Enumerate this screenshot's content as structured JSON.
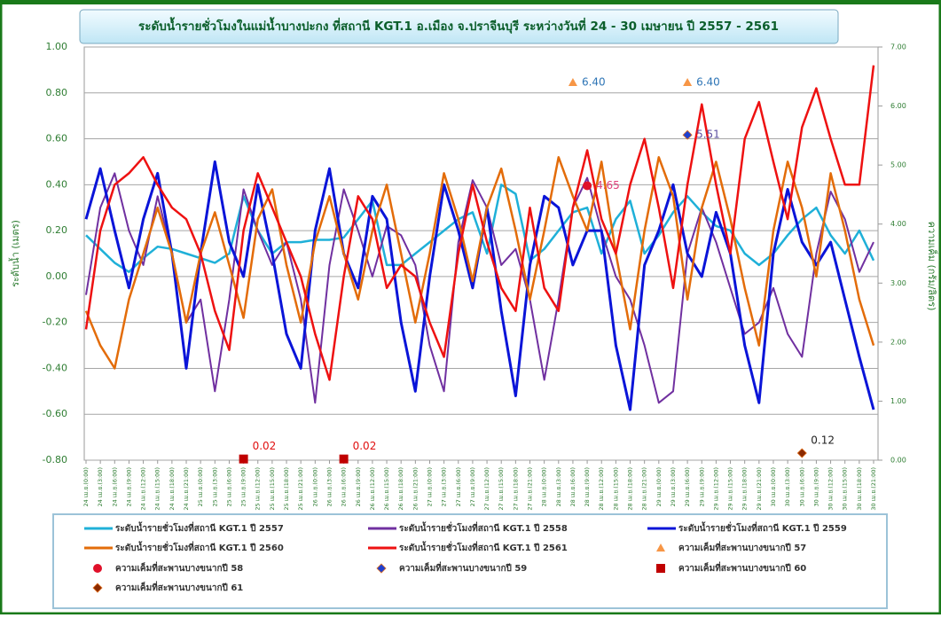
{
  "chart_data": {
    "type": "line",
    "title": "ระดับน้ำรายชั่วโมงในแม่น้ำบางปะกง ที่สถานี KGT.1 อ.เมือง จ.ปราจีนบุรี ระหว่างวันที่ 24 - 30 เมษายน ปี 2557 - 2561",
    "y_label": "ระดับน้ำ (เมตร)",
    "y2_label": "ความเค็ม (กรัม/ลิตร)",
    "grid": true,
    "ylim": [
      -0.8,
      1.0
    ],
    "yticks": [
      {
        "value": -0.8,
        "label": "-0.80"
      },
      {
        "value": -0.6,
        "label": "-0.60"
      },
      {
        "value": -0.4,
        "label": "-0.40"
      },
      {
        "value": -0.2,
        "label": "-0.20"
      },
      {
        "value": 0,
        "label": "0.00"
      },
      {
        "value": 0.2,
        "label": "0.20"
      },
      {
        "value": 0.4,
        "label": "0.40"
      },
      {
        "value": 0.6,
        "label": "0.60"
      },
      {
        "value": 0.8,
        "label": "0.80"
      },
      {
        "value": 1.0,
        "label": "1.00"
      }
    ],
    "y2lim": [
      0,
      7
    ],
    "y2ticks": [
      {
        "value": 0,
        "label": "0.00"
      },
      {
        "value": 1,
        "label": "1.00"
      },
      {
        "value": 2,
        "label": "2.00"
      },
      {
        "value": 3,
        "label": "3.00"
      },
      {
        "value": 4,
        "label": "4.00"
      },
      {
        "value": 5,
        "label": "5.00"
      },
      {
        "value": 6,
        "label": "6.00"
      },
      {
        "value": 7,
        "label": "7.00"
      }
    ],
    "categories": [
      "24 เม.ย.(0:00)",
      "24 เม.ย.(3:00)",
      "24 เม.ย.(6:00)",
      "24 เม.ย.(9:00)",
      "24 เม.ย.(12:00)",
      "24 เม.ย.(15:00)",
      "24 เม.ย.(18:00)",
      "24 เม.ย.(21:00)",
      "25 เม.ย.(0:00)",
      "25 เม.ย.(3:00)",
      "25 เม.ย.(6:00)",
      "25 เม.ย.(9:00)",
      "25 เม.ย.(12:00)",
      "25 เม.ย.(15:00)",
      "25 เม.ย.(18:00)",
      "25 เม.ย.(21:00)",
      "26 เม.ย.(0:00)",
      "26 เม.ย.(3:00)",
      "26 เม.ย.(6:00)",
      "26 เม.ย.(9:00)",
      "26 เม.ย.(12:00)",
      "26 เม.ย.(15:00)",
      "26 เม.ย.(18:00)",
      "26 เม.ย.(21:00)",
      "27 เม.ย.(0:00)",
      "27 เม.ย.(3:00)",
      "27 เม.ย.(6:00)",
      "27 เม.ย.(9:00)",
      "27 เม.ย.(12:00)",
      "27 เม.ย.(15:00)",
      "27 เม.ย.(18:00)",
      "27 เม.ย.(21:00)",
      "28 เม.ย.(0:00)",
      "28 เม.ย.(3:00)",
      "28 เม.ย.(6:00)",
      "28 เม.ย.(9:00)",
      "28 เม.ย.(12:00)",
      "28 เม.ย.(15:00)",
      "28 เม.ย.(18:00)",
      "28 เม.ย.(21:00)",
      "29 เม.ย.(0:00)",
      "29 เม.ย.(3:00)",
      "29 เม.ย.(6:00)",
      "29 เม.ย.(9:00)",
      "29 เม.ย.(12:00)",
      "29 เม.ย.(15:00)",
      "29 เม.ย.(18:00)",
      "29 เม.ย.(21:00)",
      "30 เม.ย.(0:00)",
      "30 เม.ย.(3:00)",
      "30 เม.ย.(6:00)",
      "30 เม.ย.(9:00)",
      "30 เม.ย.(12:00)",
      "30 เม.ย.(15:00)",
      "30 เม.ย.(18:00)",
      "30 เม.ย.(21:00)"
    ],
    "series": [
      {
        "name": "ระดับน้ำรายชั่วโมงที่สถานี KGT.1  ปี 2557",
        "color": "#1fb0d8",
        "width": 2.5,
        "values": [
          0.18,
          0.12,
          0.06,
          0.02,
          0.08,
          0.13,
          0.12,
          0.1,
          0.08,
          0.06,
          0.1,
          0.35,
          0.2,
          0.1,
          0.15,
          0.15,
          0.16,
          0.16,
          0.17,
          0.25,
          0.33,
          0.05,
          0.05,
          0.1,
          0.15,
          0.2,
          0.25,
          0.28,
          0.1,
          0.4,
          0.36,
          0.07,
          0.12,
          0.2,
          0.28,
          0.3,
          0.1,
          0.25,
          0.33,
          0.1,
          0.18,
          0.28,
          0.35,
          0.28,
          0.22,
          0.2,
          0.1,
          0.05,
          0.1,
          0.18,
          0.25,
          0.3,
          0.18,
          0.1,
          0.2,
          0.07
        ]
      },
      {
        "name": "ระดับน้ำรายชั่วโมงที่สถานี KGT.1  ปี 2558",
        "color": "#7030a0",
        "width": 2,
        "values": [
          -0.08,
          0.3,
          0.45,
          0.2,
          0.05,
          0.35,
          0.1,
          -0.2,
          -0.1,
          -0.5,
          -0.1,
          0.38,
          0.2,
          0.05,
          0.15,
          -0.1,
          -0.55,
          0.05,
          0.38,
          0.2,
          0.0,
          0.22,
          0.18,
          0.05,
          -0.3,
          -0.5,
          0.15,
          0.42,
          0.3,
          0.05,
          0.12,
          -0.1,
          -0.45,
          -0.1,
          0.3,
          0.43,
          0.2,
          0.0,
          -0.1,
          -0.3,
          -0.55,
          -0.5,
          0.1,
          0.3,
          0.15,
          -0.05,
          -0.25,
          -0.2,
          -0.05,
          -0.25,
          -0.35,
          0.1,
          0.37,
          0.25,
          0.02,
          0.15
        ]
      },
      {
        "name": "ระดับน้ำรายชั่วโมงที่สถานี KGT.1  ปี 2559",
        "color": "#0a14d8",
        "width": 3,
        "values": [
          0.25,
          0.47,
          0.2,
          -0.05,
          0.25,
          0.45,
          0.1,
          -0.4,
          0.1,
          0.5,
          0.15,
          0.0,
          0.4,
          0.1,
          -0.25,
          -0.4,
          0.2,
          0.47,
          0.1,
          -0.05,
          0.35,
          0.25,
          -0.2,
          -0.5,
          0.0,
          0.4,
          0.2,
          -0.05,
          0.3,
          -0.15,
          -0.52,
          0.05,
          0.35,
          0.3,
          0.05,
          0.2,
          0.2,
          -0.3,
          -0.58,
          0.05,
          0.2,
          0.4,
          0.1,
          0.0,
          0.28,
          0.1,
          -0.3,
          -0.55,
          0.1,
          0.38,
          0.15,
          0.05,
          0.15,
          -0.1,
          -0.35,
          -0.58
        ]
      },
      {
        "name": "ระดับน้ำรายชั่วโมงที่สถานี KGT.1  ปี 2560",
        "color": "#e36c09",
        "width": 2.5,
        "values": [
          -0.15,
          -0.3,
          -0.4,
          -0.1,
          0.1,
          0.3,
          0.1,
          -0.2,
          0.1,
          0.28,
          0.05,
          -0.18,
          0.25,
          0.38,
          0.05,
          -0.2,
          0.15,
          0.35,
          0.1,
          -0.1,
          0.2,
          0.4,
          0.1,
          -0.2,
          0.1,
          0.45,
          0.25,
          -0.02,
          0.3,
          0.47,
          0.2,
          -0.1,
          0.2,
          0.52,
          0.35,
          0.2,
          0.5,
          0.1,
          -0.23,
          0.2,
          0.52,
          0.35,
          -0.1,
          0.3,
          0.5,
          0.25,
          -0.05,
          -0.3,
          0.2,
          0.5,
          0.3,
          0.0,
          0.45,
          0.2,
          -0.1,
          -0.3
        ]
      },
      {
        "name": "ระดับน้ำรายชั่วโมงที่สถานี KGT.1  ปี 2561",
        "color": "#ee1111",
        "width": 2.5,
        "values": [
          -0.23,
          0.2,
          0.4,
          0.45,
          0.52,
          0.4,
          0.3,
          0.25,
          0.1,
          -0.15,
          -0.32,
          0.2,
          0.45,
          0.3,
          0.15,
          0.0,
          -0.25,
          -0.45,
          0.0,
          0.35,
          0.25,
          -0.05,
          0.05,
          0.0,
          -0.2,
          -0.35,
          0.1,
          0.4,
          0.15,
          -0.05,
          -0.15,
          0.3,
          -0.05,
          -0.15,
          0.3,
          0.55,
          0.25,
          0.1,
          0.4,
          0.6,
          0.3,
          -0.05,
          0.4,
          0.75,
          0.4,
          0.1,
          0.6,
          0.76,
          0.5,
          0.25,
          0.65,
          0.82,
          0.6,
          0.4,
          0.4,
          0.92
        ]
      },
      {
        "name": "ความเค็มที่สะพานบางขนากปี 57",
        "color": "#f79646",
        "marker": "triangle",
        "axis": "y2",
        "label_color": "#2e75b6",
        "values": [
          null,
          null,
          null,
          null,
          null,
          null,
          null,
          null,
          null,
          null,
          null,
          null,
          null,
          null,
          null,
          null,
          null,
          null,
          null,
          null,
          null,
          null,
          null,
          null,
          null,
          null,
          null,
          null,
          null,
          null,
          null,
          null,
          null,
          null,
          6.4,
          null,
          null,
          null,
          null,
          null,
          null,
          null,
          6.4,
          null,
          null,
          null,
          null,
          null,
          null,
          null,
          null,
          null,
          null,
          null,
          null,
          null
        ],
        "value_labels": [
          null,
          null,
          null,
          null,
          null,
          null,
          null,
          null,
          null,
          null,
          null,
          null,
          null,
          null,
          null,
          null,
          null,
          null,
          null,
          null,
          null,
          null,
          null,
          null,
          null,
          null,
          null,
          null,
          null,
          null,
          null,
          null,
          null,
          null,
          "6.40",
          null,
          null,
          null,
          null,
          null,
          null,
          null,
          "6.40",
          null,
          null,
          null,
          null,
          null,
          null,
          null,
          null,
          null,
          null,
          null,
          null,
          null
        ]
      },
      {
        "name": "ความเค็มที่สะพานบางขนากปี 58",
        "color": "#e0102a",
        "marker": "circle",
        "axis": "y2",
        "label_color": "#e0407b",
        "values": [
          null,
          null,
          null,
          null,
          null,
          null,
          null,
          null,
          null,
          null,
          null,
          null,
          null,
          null,
          null,
          null,
          null,
          null,
          null,
          null,
          null,
          null,
          null,
          null,
          null,
          null,
          null,
          null,
          null,
          null,
          null,
          null,
          null,
          null,
          null,
          4.65,
          null,
          null,
          null,
          null,
          null,
          null,
          null,
          null,
          null,
          null,
          null,
          null,
          null,
          null,
          null,
          null,
          null,
          null,
          null,
          null
        ],
        "value_labels": [
          null,
          null,
          null,
          null,
          null,
          null,
          null,
          null,
          null,
          null,
          null,
          null,
          null,
          null,
          null,
          null,
          null,
          null,
          null,
          null,
          null,
          null,
          null,
          null,
          null,
          null,
          null,
          null,
          null,
          null,
          null,
          null,
          null,
          null,
          null,
          "4.65",
          null,
          null,
          null,
          null,
          null,
          null,
          null,
          null,
          null,
          null,
          null,
          null,
          null,
          null,
          null,
          null,
          null,
          null,
          null,
          null
        ]
      },
      {
        "name": "ความเค็มที่สะพานบางขนากปี 59",
        "color": "#1f3fcf",
        "marker": "diamond",
        "axis": "y2",
        "label_color": "#5b4fa0",
        "values": [
          null,
          null,
          null,
          null,
          null,
          null,
          null,
          null,
          null,
          null,
          null,
          null,
          null,
          null,
          null,
          null,
          null,
          null,
          null,
          null,
          null,
          null,
          null,
          null,
          null,
          null,
          null,
          null,
          null,
          null,
          null,
          null,
          null,
          null,
          null,
          null,
          null,
          null,
          null,
          null,
          null,
          null,
          5.51,
          null,
          null,
          null,
          null,
          null,
          null,
          null,
          null,
          null,
          null,
          null,
          null,
          null
        ],
        "value_labels": [
          null,
          null,
          null,
          null,
          null,
          null,
          null,
          null,
          null,
          null,
          null,
          null,
          null,
          null,
          null,
          null,
          null,
          null,
          null,
          null,
          null,
          null,
          null,
          null,
          null,
          null,
          null,
          null,
          null,
          null,
          null,
          null,
          null,
          null,
          null,
          null,
          null,
          null,
          null,
          null,
          null,
          null,
          "5.51",
          null,
          null,
          null,
          null,
          null,
          null,
          null,
          null,
          null,
          null,
          null,
          null,
          null
        ]
      },
      {
        "name": "ความเค็มที่สะพานบางขนากปี 60",
        "color": "#c00000",
        "marker": "square",
        "axis": "y2",
        "label_color": "#e01010",
        "values": [
          null,
          null,
          null,
          null,
          null,
          null,
          null,
          null,
          null,
          null,
          null,
          0.02,
          null,
          null,
          null,
          null,
          null,
          null,
          0.02,
          null,
          null,
          null,
          null,
          null,
          null,
          null,
          null,
          null,
          null,
          null,
          null,
          null,
          null,
          null,
          null,
          null,
          null,
          null,
          null,
          null,
          null,
          null,
          null,
          null,
          null,
          null,
          null,
          null,
          null,
          null,
          null,
          null,
          null,
          null,
          null,
          null
        ],
        "value_labels": [
          null,
          null,
          null,
          null,
          null,
          null,
          null,
          null,
          null,
          null,
          null,
          "0.02",
          null,
          null,
          null,
          null,
          null,
          null,
          "0.02",
          null,
          null,
          null,
          null,
          null,
          null,
          null,
          null,
          null,
          null,
          null,
          null,
          null,
          null,
          null,
          null,
          null,
          null,
          null,
          null,
          null,
          null,
          null,
          null,
          null,
          null,
          null,
          null,
          null,
          null,
          null,
          null,
          null,
          null,
          null,
          null,
          null
        ]
      },
      {
        "name": "ความเค็มที่สะพานบางขนากปี 61",
        "color": "#8b2a00",
        "marker": "diamond",
        "axis": "y2",
        "label_color": "#222222",
        "values": [
          null,
          null,
          null,
          null,
          null,
          null,
          null,
          null,
          null,
          null,
          null,
          null,
          null,
          null,
          null,
          null,
          null,
          null,
          null,
          null,
          null,
          null,
          null,
          null,
          null,
          null,
          null,
          null,
          null,
          null,
          null,
          null,
          null,
          null,
          null,
          null,
          null,
          null,
          null,
          null,
          null,
          null,
          null,
          null,
          null,
          null,
          null,
          null,
          null,
          null,
          0.12,
          null,
          null,
          null,
          null,
          null
        ],
        "value_labels": [
          null,
          null,
          null,
          null,
          null,
          null,
          null,
          null,
          null,
          null,
          null,
          null,
          null,
          null,
          null,
          null,
          null,
          null,
          null,
          null,
          null,
          null,
          null,
          null,
          null,
          null,
          null,
          null,
          null,
          null,
          null,
          null,
          null,
          null,
          null,
          null,
          null,
          null,
          null,
          null,
          null,
          null,
          null,
          null,
          null,
          null,
          null,
          null,
          null,
          null,
          "0.12",
          null,
          null,
          null,
          null,
          null
        ]
      }
    ]
  }
}
